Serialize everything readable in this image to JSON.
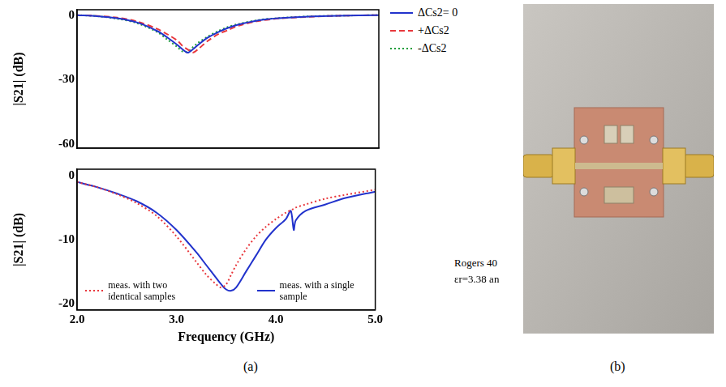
{
  "figure": {
    "panel_labels": [
      "(a)",
      "(b)"
    ]
  },
  "chart_data": [
    {
      "type": "line",
      "y_label": "|S21| (dB)",
      "x": [
        2.0,
        2.2,
        2.4,
        2.6,
        2.8,
        2.9,
        3.0,
        3.05,
        3.1,
        3.15,
        3.2,
        3.3,
        3.4,
        3.5,
        3.6,
        3.8,
        4.0,
        4.3,
        4.6,
        5.0
      ],
      "xlim": [
        2,
        5
      ],
      "xticks": [
        2,
        3,
        4,
        5
      ],
      "ylim": [
        -62,
        2.5
      ],
      "yticks": [
        0,
        -30,
        -60
      ],
      "tick_labels": "y",
      "grid": false,
      "legend": "right",
      "series": [
        {
          "name": "ΔCs2= 0",
          "color": "#2233cc",
          "line_style": "solid",
          "values": [
            0,
            -0.5,
            -1.5,
            -3.5,
            -7.5,
            -10.5,
            -14,
            -16,
            -17.5,
            -16,
            -14,
            -10.5,
            -8,
            -6,
            -4.5,
            -2.5,
            -1.5,
            -0.7,
            -0.3,
            0
          ]
        },
        {
          "name": "+ΔCs2",
          "color": "#e8383d",
          "line_style": "dashed",
          "values": [
            0,
            -0.4,
            -1.2,
            -3,
            -6.5,
            -9,
            -12,
            -14.5,
            -16,
            -17.5,
            -16,
            -12,
            -9,
            -7,
            -5,
            -2.8,
            -1.6,
            -0.8,
            -0.3,
            0
          ]
        },
        {
          "name": "-ΔCs2",
          "color": "#1f9e3a",
          "line_style": "dotted",
          "values": [
            0,
            -0.5,
            -1.7,
            -3.8,
            -8,
            -11.5,
            -15,
            -17,
            -17,
            -15,
            -13,
            -10,
            -7.5,
            -5.5,
            -4.2,
            -2.3,
            -1.4,
            -0.6,
            -0.3,
            0
          ]
        }
      ]
    },
    {
      "type": "line",
      "x_label": "Frequency (GHz)",
      "y_label": "|S21| (dB)",
      "x": [
        2.0,
        2.2,
        2.4,
        2.6,
        2.8,
        3.0,
        3.2,
        3.3,
        3.4,
        3.45,
        3.5,
        3.55,
        3.6,
        3.7,
        3.8,
        3.9,
        4.0,
        4.1,
        4.15,
        4.18,
        4.2,
        4.3,
        4.5,
        4.7,
        5.0
      ],
      "xlim": [
        2,
        5
      ],
      "xticks": [
        {
          "value": 2,
          "label": "2.0"
        },
        {
          "value": 3,
          "label": "3.0"
        },
        {
          "value": 4,
          "label": "4.0"
        },
        {
          "value": 5,
          "label": "5.0"
        }
      ],
      "ylim": [
        -21,
        1
      ],
      "yticks": [
        0,
        -10,
        -20
      ],
      "grid": false,
      "legend": "bottom",
      "annotations": [
        "Rogers 40",
        "εr=3.38 an"
      ],
      "series": [
        {
          "name": "meas. with two identical samples",
          "color": "#e8383d",
          "line_style": "dotted",
          "values": [
            -1,
            -1.8,
            -2.9,
            -4.3,
            -6.3,
            -9.5,
            -13.5,
            -15.5,
            -17,
            -17.5,
            -17,
            -15.5,
            -14,
            -11.5,
            -9.5,
            -8,
            -6.8,
            -5.8,
            -5.4,
            -5.2,
            -5,
            -4.5,
            -3.6,
            -3,
            -2.2
          ]
        },
        {
          "name": "meas. with a single sample",
          "color": "#2233cc",
          "line_style": "solid",
          "values": [
            -1,
            -1.8,
            -2.8,
            -4,
            -5.8,
            -8.5,
            -12,
            -14,
            -16,
            -17,
            -17.8,
            -18,
            -17.5,
            -15,
            -12.5,
            -10,
            -8.2,
            -6.8,
            -5.5,
            -8.5,
            -7,
            -5.5,
            -4.5,
            -3.5,
            -2.5
          ]
        }
      ]
    }
  ]
}
